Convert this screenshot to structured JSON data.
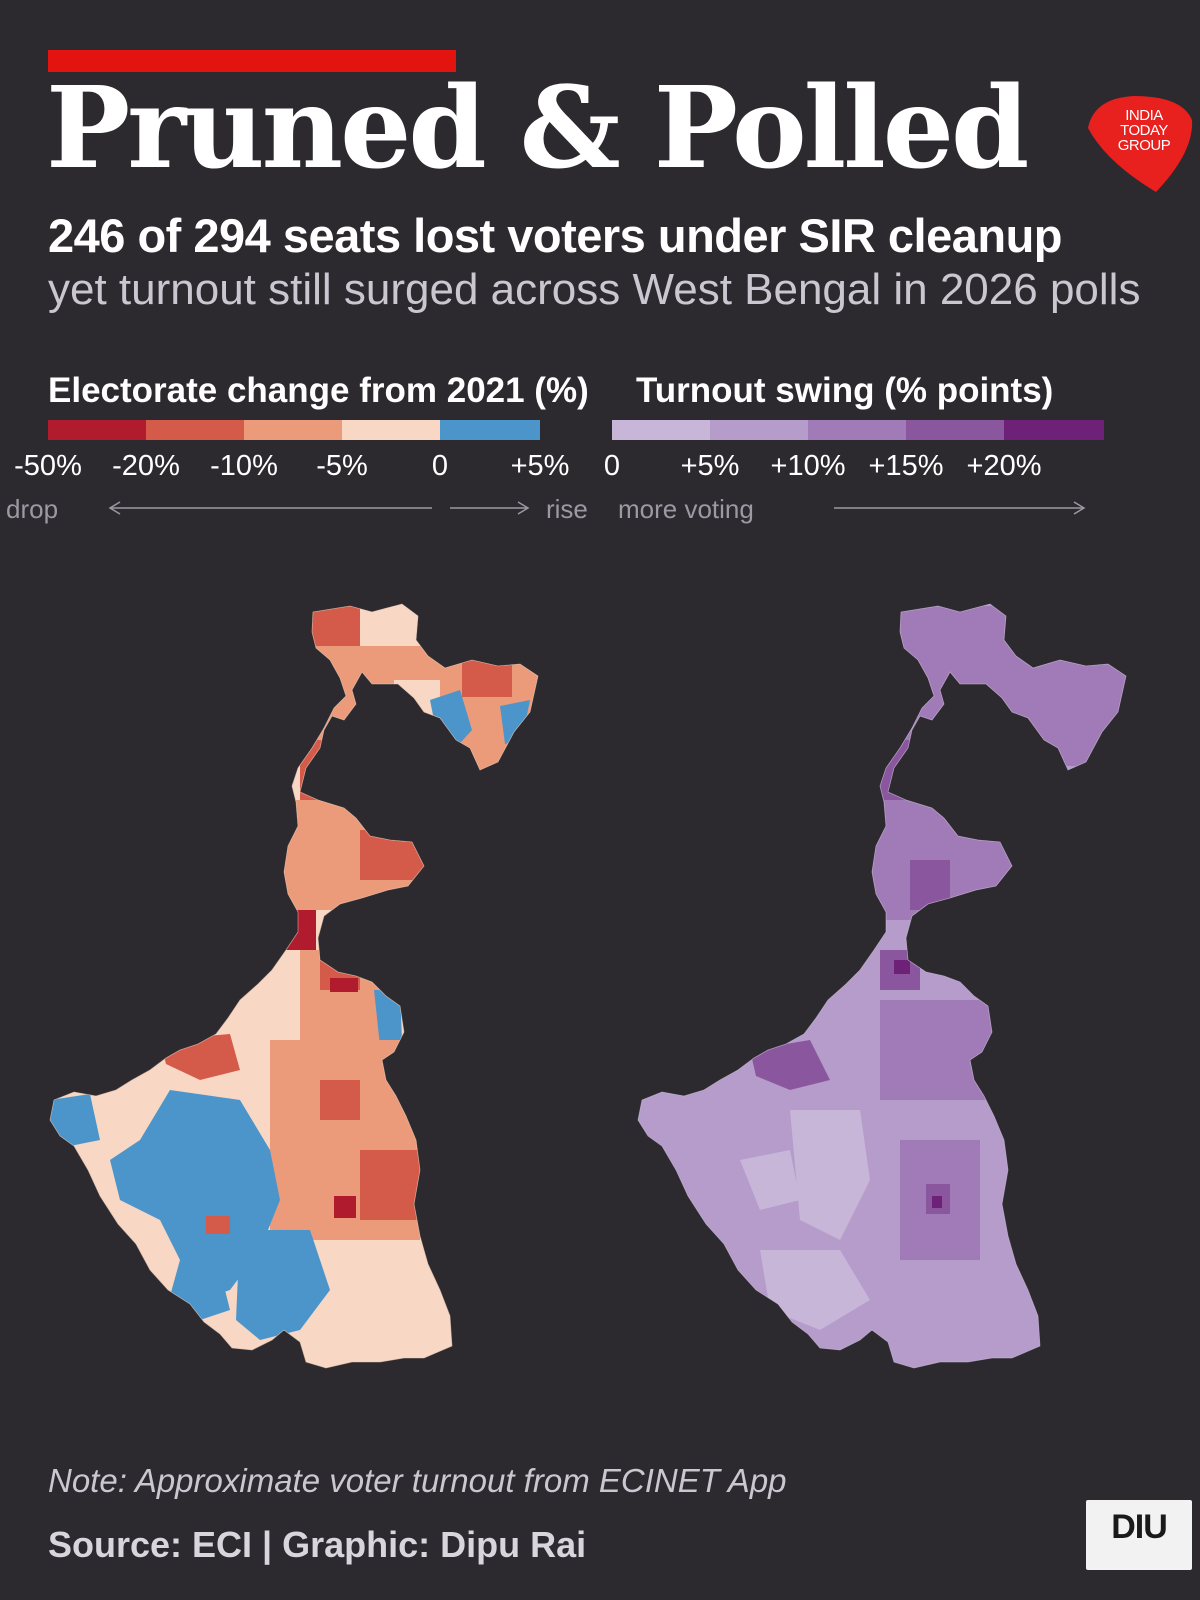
{
  "title": "Pruned & Polled",
  "publisher_logo": {
    "text": "INDIA TODAY GROUP",
    "lines": [
      "INDIA",
      "TODAY",
      "GROUP"
    ],
    "color": "#e8201e"
  },
  "headline": "246 of 294 seats lost voters under SIR cleanup",
  "subheadline": "yet turnout still surged across West Bengal in 2026 polls",
  "legend_electorate": {
    "title": "Electorate change from 2021 (%)",
    "colors": [
      "#b01c2e",
      "#d45b4a",
      "#ec9b7a",
      "#f8d7c4",
      "#4b95cb"
    ],
    "ticks": [
      "-50%",
      "-20%",
      "-10%",
      "-5%",
      "0",
      "+5%"
    ],
    "hint_left": "drop",
    "hint_right": "rise"
  },
  "legend_turnout": {
    "title": "Turnout swing (% points)",
    "colors": [
      "#c8b6d8",
      "#b59ccb",
      "#a07bb8",
      "#8a579f",
      "#6d2277"
    ],
    "ticks": [
      "0",
      "+5%",
      "+10%",
      "+15%",
      "+20%"
    ],
    "hint": "more voting"
  },
  "maps": {
    "region": "West Bengal",
    "left_map": "Electorate change from 2021 (%)",
    "right_map": "Turnout swing (% points)",
    "background": "#2c2a2f"
  },
  "footer": {
    "note": "Note: Approximate voter turnout from ECINET App",
    "source": "Source: ECI  |  Graphic: Dipu Rai"
  },
  "diu_logo": {
    "text": "DIU"
  }
}
